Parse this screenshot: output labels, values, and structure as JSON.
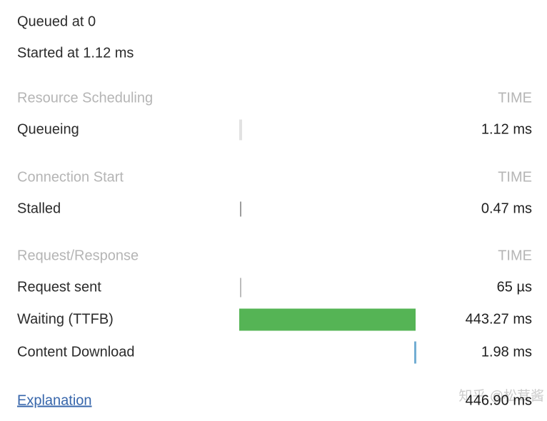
{
  "header": {
    "queued_line": "Queued at 0",
    "started_line": "Started at 1.12 ms"
  },
  "sections": [
    {
      "label": "Resource Scheduling",
      "time_header": "TIME"
    },
    {
      "label": "Connection Start",
      "time_header": "TIME"
    },
    {
      "label": "Request/Response",
      "time_header": "TIME"
    }
  ],
  "rows": [
    {
      "label": "Queueing",
      "value": "1.12 ms",
      "marker": "light-gray-tick"
    },
    {
      "label": "Stalled",
      "value": "0.47 ms",
      "marker": "gray-tick"
    },
    {
      "label": "Request sent",
      "value": "65 µs",
      "marker": "light-gray-tick"
    },
    {
      "label": "Waiting (TTFB)",
      "value": "443.27 ms",
      "marker": "green-bar"
    },
    {
      "label": "Content Download",
      "value": "1.98 ms",
      "marker": "blue-tick"
    }
  ],
  "footer": {
    "explanation_label": "Explanation",
    "total": "446.90 ms",
    "watermark": "知乎 @松茸酱"
  },
  "colors": {
    "waiting_bar": "#55b455",
    "content_download_tick": "#73aed3",
    "explanation_link": "#3766ab",
    "section_heading_text": "#b5b5b5",
    "watermark_text": "#cbcbcb"
  }
}
